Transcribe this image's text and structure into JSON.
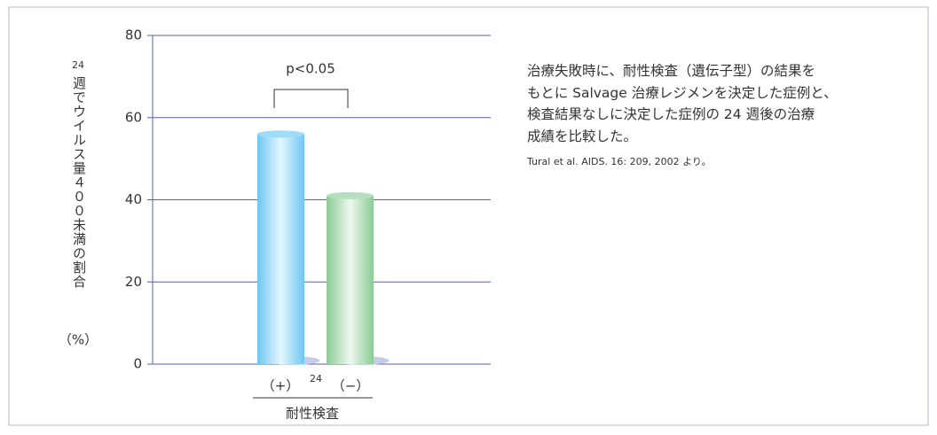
{
  "chart_data": {
    "type": "bar",
    "categories": [
      "（+）",
      "（−）"
    ],
    "values": [
      56,
      41
    ],
    "colors": [
      "#9fdcf8",
      "#b5e0bd"
    ],
    "ylim": [
      0,
      80
    ],
    "yticks": [
      0,
      20,
      40,
      60,
      80
    ],
    "grid": true,
    "ylabel": [
      "24",
      "週でウイルス量４００未満の割合",
      "（%）"
    ],
    "xlabel": "耐性検査",
    "xnote": "24",
    "annotation": "p<0.05",
    "description": [
      "治療失敗時に、耐性検査（遺伝子型）の結果を",
      "もとに Salvage 治療レジメンを決定した症例と、",
      "検査結果なしに決定した症例の 24 週後の治療",
      "成績を比較した。"
    ],
    "citation": "Tural et al. AIDS. 16: 209, 2002 より。"
  }
}
